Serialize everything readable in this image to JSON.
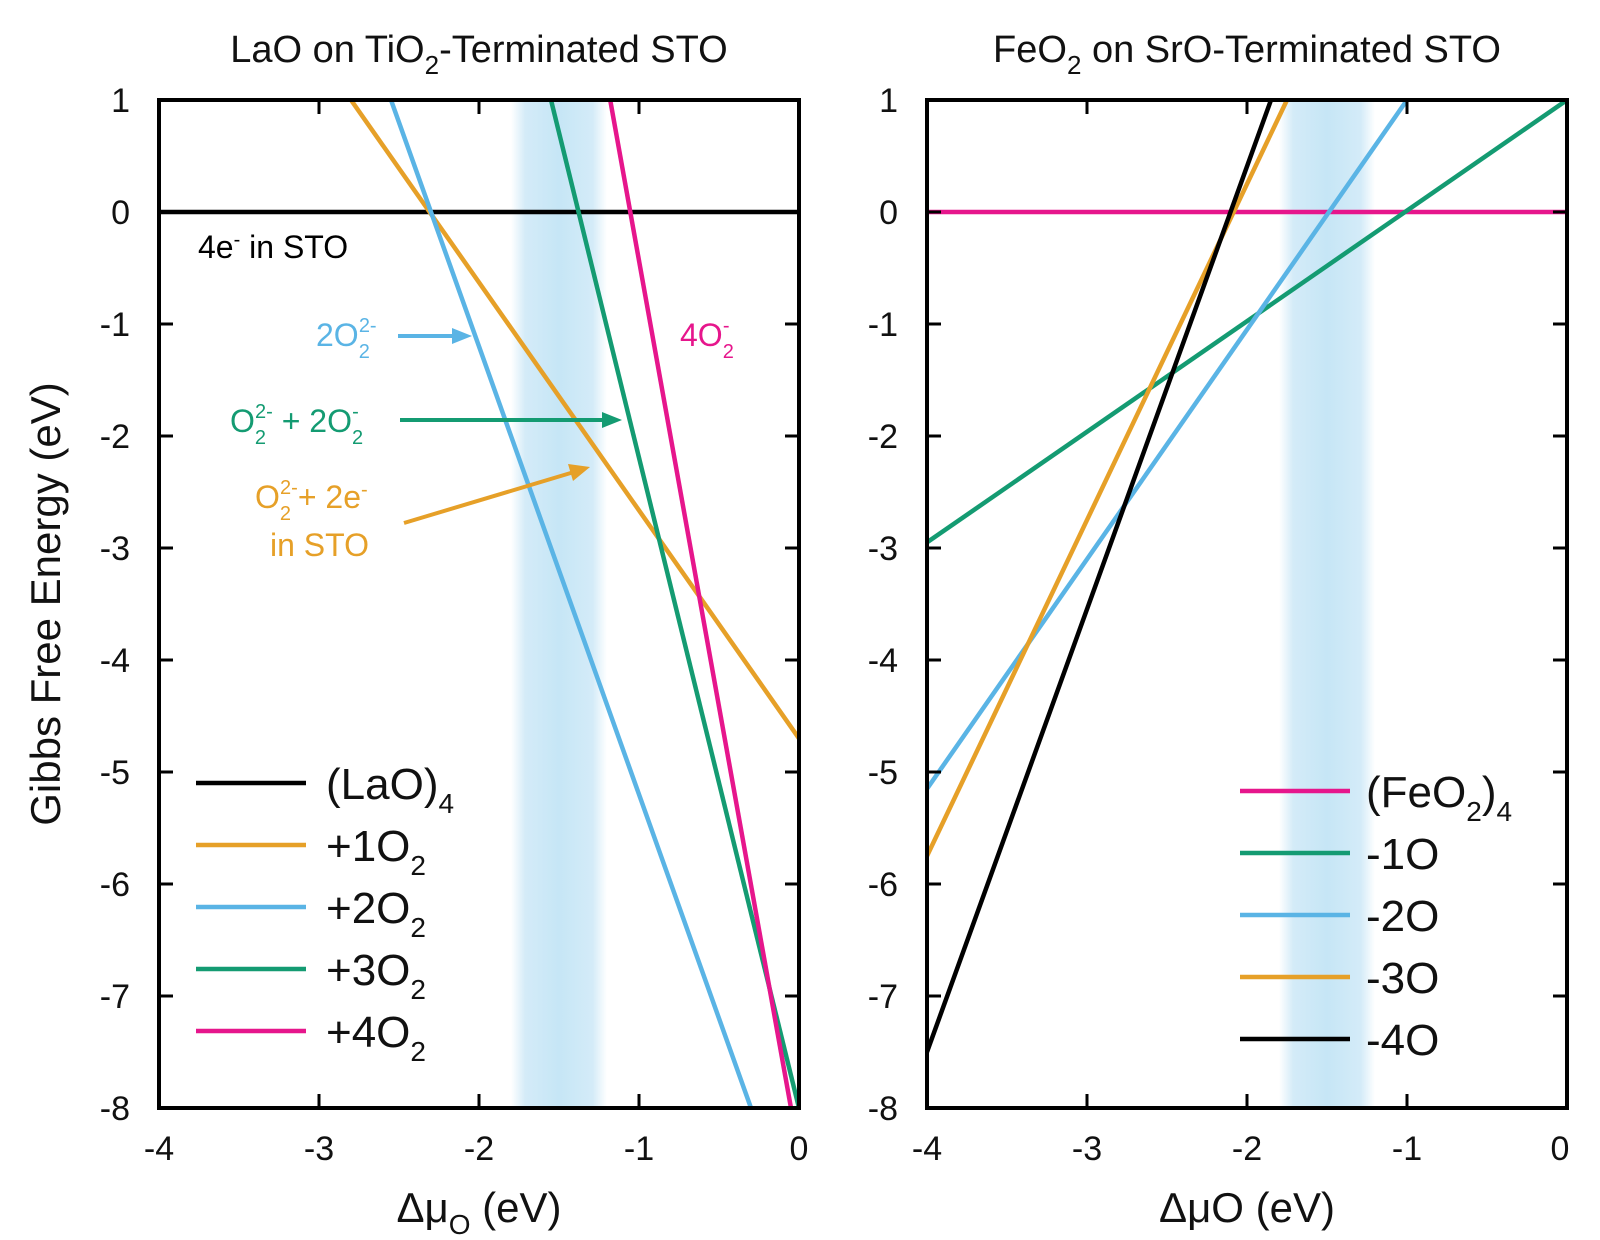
{
  "chart_data": [
    {
      "type": "line",
      "title": "LaO on TiO",
      "title_sub": "2",
      "title_rest": "-Terminated STO",
      "xlabel": "Δμ",
      "xlabel_sub": "O",
      "xlabel_rest": " (eV)",
      "ylabel": "Gibbs Free Energy (eV)",
      "xlim": [
        -4,
        0
      ],
      "ylim": [
        -8,
        1
      ],
      "xticks": [
        -4,
        -3,
        -2,
        -1,
        0
      ],
      "xtick_labels": [
        "-4",
        "-3",
        "-2",
        "-1",
        "0"
      ],
      "yticks": [
        1,
        0,
        -1,
        -2,
        -3,
        -4,
        -5,
        -6,
        -7,
        -8
      ],
      "ytick_labels": [
        "1",
        "0",
        "-1",
        "-2",
        "-3",
        "-4",
        "-5",
        "-6",
        "-7",
        "-8"
      ],
      "shaded_region": {
        "x": [
          -1.8,
          -1.2
        ],
        "color": "#cfe9f7"
      },
      "series": [
        {
          "name": "(LaO)",
          "name_sub": "4",
          "color": "#000000",
          "x": [
            -4,
            0
          ],
          "y": [
            0,
            0
          ]
        },
        {
          "name": "+1O",
          "name_sub": "2",
          "color": "#e6a028",
          "x": [
            -2.8,
            0
          ],
          "y": [
            1,
            -4.7
          ]
        },
        {
          "name": "+2O",
          "name_sub": "2",
          "color": "#5ab4e5",
          "x": [
            -2.55,
            -0.3
          ],
          "y": [
            1,
            -8
          ]
        },
        {
          "name": "+3O",
          "name_sub": "2",
          "color": "#149b72",
          "x": [
            -1.55,
            0
          ],
          "y": [
            1,
            -8
          ]
        },
        {
          "name": "+4O",
          "name_sub": "2",
          "color": "#e6168c",
          "x": [
            -1.18,
            -0.05
          ],
          "y": [
            1,
            -8
          ]
        }
      ],
      "annotations": [
        {
          "text": "4e",
          "sup": "-",
          "rest": " in STO",
          "color": "#000000"
        },
        {
          "text": "2O",
          "sub": "2",
          "sup": "2-",
          "color": "#5ab4e5"
        },
        {
          "text": "4O",
          "sub": "2",
          "sup": "-",
          "color": "#e6168c"
        },
        {
          "text": "O",
          "sub": "2",
          "sup": "2-",
          "mid": " + 2O",
          "sub2": "2",
          "sup2": "-",
          "color": "#149b72"
        },
        {
          "text": "O",
          "sub": "2",
          "sup": "2-",
          "mid": "+ 2e",
          "sup2": "-",
          "line2": "in STO",
          "color": "#e6a028"
        }
      ],
      "legend_position": "bottom-left"
    },
    {
      "type": "line",
      "title": "FeO",
      "title_sub": "2",
      "title_rest": " on SrO-Terminated STO",
      "xlabel": "ΔμO (eV)",
      "xlim": [
        -4,
        0
      ],
      "ylim": [
        -8,
        1
      ],
      "xticks": [
        -4,
        -3,
        -2,
        -1,
        0
      ],
      "xtick_labels": [
        "-4",
        "-3",
        "-2",
        "-1",
        "0"
      ],
      "yticks": [
        1,
        0,
        -1,
        -2,
        -3,
        -4,
        -5,
        -6,
        -7,
        -8
      ],
      "ytick_labels": [
        "1",
        "0",
        "-1",
        "-2",
        "-3",
        "-4",
        "-5",
        "-6",
        "-7",
        "-8"
      ],
      "shaded_region": {
        "x": [
          -1.8,
          -1.2
        ],
        "color": "#cfe9f7"
      },
      "series": [
        {
          "name": "(FeO",
          "name_sub": "2",
          "name_rest": ")",
          "name_sub2": "4",
          "color": "#e6168c",
          "x": [
            -4,
            0
          ],
          "y": [
            0,
            0
          ]
        },
        {
          "name": "-1O",
          "color": "#149b72",
          "x": [
            -4,
            0
          ],
          "y": [
            -2.95,
            1
          ]
        },
        {
          "name": "-2O",
          "color": "#5ab4e5",
          "x": [
            -4,
            -1.0
          ],
          "y": [
            -5.15,
            1
          ]
        },
        {
          "name": "-3O",
          "color": "#e6a028",
          "x": [
            -4,
            -1.75
          ],
          "y": [
            -5.75,
            1
          ]
        },
        {
          "name": "-4O",
          "color": "#000000",
          "x": [
            -4,
            -1.85
          ],
          "y": [
            -7.5,
            1
          ]
        }
      ],
      "legend_position": "bottom-right"
    }
  ]
}
